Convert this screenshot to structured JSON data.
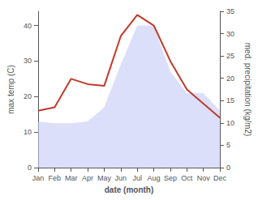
{
  "chart_data": {
    "type": "line",
    "xlabel": "date (month)",
    "ylabel": "max temp (C)",
    "y2label": "med. precipitation (kg/m2)",
    "categories": [
      "Jan",
      "Feb",
      "Mar",
      "Apr",
      "May",
      "Jun",
      "Jul",
      "Aug",
      "Sep",
      "Oct",
      "Nov",
      "Dec"
    ],
    "series": [
      {
        "type": "area",
        "color": "#c5caf5",
        "values": [
          13,
          12.5,
          12.5,
          13,
          17,
          29,
          40,
          40,
          27,
          21,
          21,
          16
        ]
      },
      {
        "type": "line",
        "color": "#c0392b",
        "values": [
          16,
          17,
          25,
          23.5,
          23,
          37,
          43,
          40,
          30,
          22,
          18,
          14
        ]
      }
    ],
    "ylim": [
      0,
      44
    ],
    "yticks": [
      0,
      10,
      20,
      30,
      40
    ],
    "y2lim": [
      0,
      35
    ],
    "y2ticks": [
      0,
      5,
      10,
      15,
      20,
      25,
      30,
      35
    ],
    "grid": false
  }
}
